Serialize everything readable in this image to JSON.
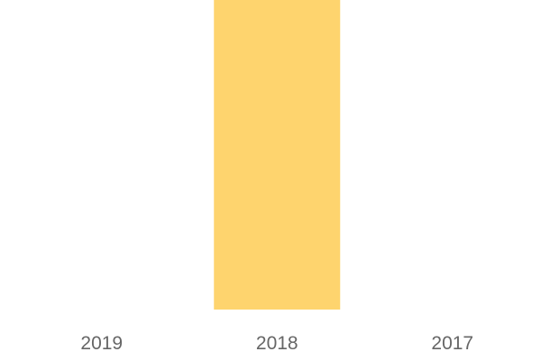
{
  "chart_data": {
    "type": "bar",
    "categories": [
      "2019",
      "2018",
      "2017"
    ],
    "values": [
      0,
      1,
      0
    ],
    "ylim": [
      0,
      1
    ],
    "title": "",
    "xlabel": "",
    "ylabel": "",
    "grid": false,
    "bar_color": "#FED46E",
    "label_color": "#666666"
  }
}
